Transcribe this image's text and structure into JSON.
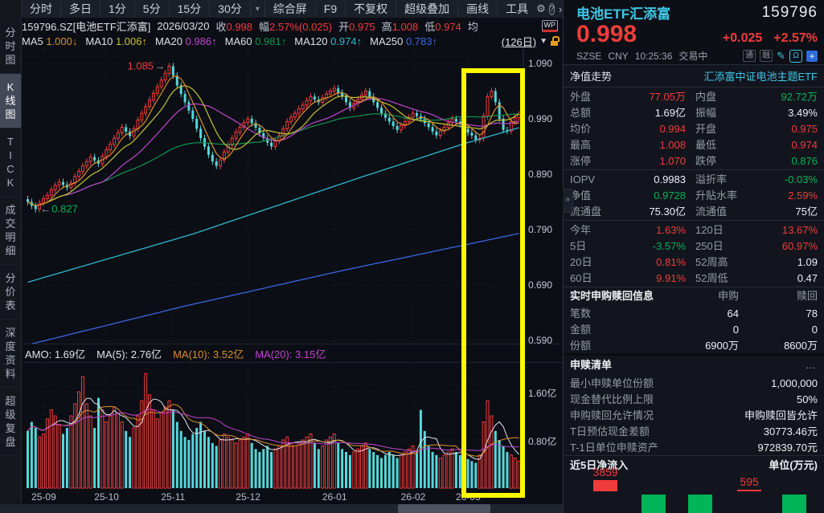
{
  "colors": {
    "chartBg": "#0b0e14",
    "panelBg": "#12151d",
    "topBg": "#1b1f27",
    "sideBg": "#14171e",
    "divider": "#262b35",
    "grid": "#252a34",
    "labelG": "#949ca8",
    "textW": "#e4e7ec",
    "red": "#f23c3c",
    "green": "#00b458",
    "candleCyan": "#55d7da",
    "accCyan": "#3ec7e6",
    "ma5": "#d9902d",
    "ma10": "#c9c331",
    "ma20": "#bf46cf",
    "ma60": "#129552",
    "ma120": "#2fb7cf",
    "ma250": "#3a67e6",
    "hlYellow": "#fdf900",
    "lockOr": "#e8a020",
    "volW": "#dfe3e8"
  },
  "icons": {
    "gear": "⚙",
    "help": "?",
    "chev_right": "›",
    "caret_small": "▾",
    "caret_down": "▼",
    "more": "…",
    "collapse": "»",
    "pencil": "✎",
    "bell": "Ω",
    "plus": "+"
  },
  "toolbar": {
    "tabs": [
      "分时",
      "多日",
      "1分",
      "5分",
      "15分",
      "30分"
    ],
    "menu": [
      "综合屏",
      "F9",
      "不复权",
      "超级叠加",
      "画线",
      "工具"
    ]
  },
  "info_bar": {
    "symbol": "159796.SZ[电池ETF汇添富]",
    "date": "2026/03/20",
    "fields": [
      {
        "label": "收",
        "value": "0.998",
        "c": "red"
      },
      {
        "label": "幅",
        "value": "2.57%(0.025)",
        "c": "red"
      },
      {
        "label": "开",
        "value": "0.975",
        "c": "red"
      },
      {
        "label": "高",
        "value": "1.008",
        "c": "red"
      },
      {
        "label": "低",
        "value": "0.974",
        "c": "red"
      },
      {
        "label": "均",
        "value": "",
        "c": "dim"
      }
    ],
    "wp_badge": "WP"
  },
  "ma_bar": {
    "items": [
      {
        "label": "MA5",
        "value": "1.000",
        "arrow": "↓",
        "key": "ma5"
      },
      {
        "label": "MA10",
        "value": "1.006",
        "arrow": "↑",
        "key": "ma10"
      },
      {
        "label": "MA20",
        "value": "0.986",
        "arrow": "↑",
        "key": "ma20"
      },
      {
        "label": "MA60",
        "value": "0.981",
        "arrow": "↑",
        "key": "ma60"
      },
      {
        "label": "MA120",
        "value": "0.974",
        "arrow": "↑",
        "key": "ma120"
      },
      {
        "label": "MA250",
        "value": "0.783",
        "arrow": "↑",
        "key": "ma250"
      }
    ],
    "period": "(126日)"
  },
  "sidebar": {
    "items": [
      {
        "label": "分时图",
        "selected": false
      },
      {
        "label": "K线图",
        "selected": true
      },
      {
        "label": "TICK",
        "selected": false
      },
      {
        "label": "成交明细",
        "selected": false
      },
      {
        "label": "分价表",
        "selected": false
      },
      {
        "label": "深度资料",
        "selected": false
      },
      {
        "label": "超级复盘",
        "selected": false
      }
    ]
  },
  "chart_data": {
    "type": "candlestick",
    "title": "159796.SZ 电池ETF汇添富 日K (126日)",
    "y_ticks": [
      1.09,
      0.99,
      0.89,
      0.79,
      0.69,
      0.59
    ],
    "x_labels": [
      {
        "label": "25-09",
        "day": 4
      },
      {
        "label": "25-10",
        "day": 20
      },
      {
        "label": "25-11",
        "day": 37
      },
      {
        "label": "25-12",
        "day": 56
      },
      {
        "label": "26-01",
        "day": 78
      },
      {
        "label": "26-02",
        "day": 98
      },
      {
        "label": "26-03",
        "day": 112
      }
    ],
    "close": [
      0.84,
      0.833,
      0.827,
      0.838,
      0.846,
      0.852,
      0.862,
      0.87,
      0.876,
      0.871,
      0.866,
      0.874,
      0.886,
      0.895,
      0.905,
      0.913,
      0.921,
      0.915,
      0.909,
      0.922,
      0.934,
      0.944,
      0.955,
      0.965,
      0.975,
      0.967,
      0.959,
      0.972,
      0.988,
      1.0,
      1.012,
      1.024,
      1.036,
      1.048,
      1.06,
      1.072,
      1.085,
      1.068,
      1.05,
      1.035,
      1.02,
      1.005,
      0.99,
      0.972,
      0.955,
      0.94,
      0.925,
      0.913,
      0.905,
      0.916,
      0.93,
      0.943,
      0.955,
      0.966,
      0.975,
      0.983,
      0.99,
      0.982,
      0.974,
      0.964,
      0.955,
      0.947,
      0.94,
      0.95,
      0.96,
      0.972,
      0.985,
      0.993,
      1.0,
      1.008,
      1.015,
      1.023,
      1.03,
      1.025,
      1.02,
      1.028,
      1.035,
      1.04,
      1.045,
      1.037,
      1.03,
      1.02,
      1.01,
      1.018,
      1.025,
      1.033,
      1.04,
      1.03,
      1.02,
      1.01,
      1.0,
      0.992,
      0.985,
      0.977,
      0.97,
      0.978,
      0.985,
      0.993,
      1.0,
      0.995,
      0.99,
      0.982,
      0.975,
      0.967,
      0.96,
      0.968,
      0.975,
      0.983,
      0.99,
      0.985,
      0.98,
      0.972,
      0.965,
      0.96,
      0.952,
      0.955,
      0.995,
      1.03,
      1.04,
      1.02,
      0.99,
      0.97,
      0.968,
      0.985,
      0.992,
      0.998
    ],
    "volume_yi": [
      0.95,
      1.1,
      1.0,
      0.85,
      0.9,
      1.15,
      1.3,
      1.2,
      1.05,
      0.9,
      1.0,
      1.2,
      1.4,
      1.6,
      1.85,
      1.4,
      1.2,
      1.0,
      1.5,
      1.3,
      1.1,
      1.2,
      1.35,
      1.25,
      1.1,
      0.95,
      0.85,
      1.0,
      1.2,
      1.45,
      1.9,
      1.55,
      1.3,
      1.15,
      1.25,
      1.35,
      1.45,
      1.3,
      1.1,
      0.95,
      0.85,
      0.8,
      0.9,
      1.0,
      1.1,
      0.95,
      0.85,
      0.75,
      0.7,
      0.8,
      0.9,
      0.85,
      0.8,
      0.75,
      0.8,
      0.85,
      0.9,
      0.75,
      0.65,
      0.6,
      0.65,
      0.7,
      0.6,
      0.65,
      0.7,
      0.8,
      0.85,
      0.75,
      0.7,
      0.75,
      0.8,
      0.85,
      0.9,
      0.75,
      0.65,
      0.7,
      0.8,
      0.85,
      0.9,
      0.75,
      0.65,
      0.6,
      0.55,
      0.6,
      0.65,
      0.7,
      0.75,
      0.65,
      0.6,
      0.55,
      0.5,
      0.55,
      0.6,
      0.55,
      0.5,
      0.55,
      0.6,
      0.65,
      0.7,
      0.6,
      1.3,
      0.95,
      0.7,
      0.6,
      0.55,
      0.5,
      0.55,
      0.6,
      0.65,
      0.6,
      0.55,
      0.5,
      0.48,
      0.45,
      0.42,
      0.55,
      1.1,
      1.45,
      1.2,
      0.95,
      0.8,
      0.7,
      0.6,
      0.55,
      0.5,
      0.45
    ],
    "vol_ticks": [
      {
        "label": "1.60亿",
        "value": 1.6
      },
      {
        "label": "0.80亿",
        "value": 0.8
      }
    ],
    "annotations": {
      "high": {
        "text": "1.085",
        "day": 36,
        "price": 1.085,
        "arrow": "→"
      },
      "low": {
        "text": "0.827",
        "day": 2,
        "price": 0.827,
        "arrow": "←"
      }
    },
    "amo_items": [
      {
        "label": "AMO:",
        "value": "1.69亿",
        "key": "volW"
      },
      {
        "label": "MA(5):",
        "value": "2.76亿",
        "key": "volW"
      },
      {
        "label": "MA(10):",
        "value": "3.52亿",
        "key": "ma5"
      },
      {
        "label": "MA(20):",
        "value": "3.15亿",
        "key": "ma20"
      }
    ],
    "ma120_waypoints": [
      [
        0,
        0.695
      ],
      [
        42,
        0.782
      ],
      [
        85,
        0.885
      ],
      [
        111,
        0.945
      ],
      [
        125,
        0.974
      ]
    ],
    "ma250_waypoints": [
      [
        0,
        0.582
      ],
      [
        40,
        0.652
      ],
      [
        80,
        0.716
      ],
      [
        125,
        0.783
      ]
    ],
    "highlight_box_days": [
      112,
      125
    ]
  },
  "panel": {
    "name": "电池ETF汇添富",
    "code": "159796",
    "price": "0.998",
    "change": "+0.025",
    "change_pct": "+2.57%",
    "exchange": "SZSE",
    "currency": "CNY",
    "time": "10:25:36",
    "status": "交易中",
    "badges": [
      "通",
      "融"
    ],
    "nav_title": "净值走势",
    "fund_name": "汇添富中证电池主题ETF",
    "quote_groups": [
      [
        [
          {
            "l": "外盘",
            "v": "77.05万",
            "c": "red"
          },
          {
            "l": "内盘",
            "v": "92.72万",
            "c": "green"
          }
        ],
        [
          {
            "l": "总额",
            "v": "1.69亿",
            "c": "white"
          },
          {
            "l": "振幅",
            "v": "3.49%",
            "c": "white"
          }
        ],
        [
          {
            "l": "均价",
            "v": "0.994",
            "c": "red"
          },
          {
            "l": "开盘",
            "v": "0.975",
            "c": "red"
          }
        ],
        [
          {
            "l": "最高",
            "v": "1.008",
            "c": "red"
          },
          {
            "l": "最低",
            "v": "0.974",
            "c": "red"
          }
        ],
        [
          {
            "l": "涨停",
            "v": "1.070",
            "c": "red"
          },
          {
            "l": "跌停",
            "v": "0.876",
            "c": "green"
          }
        ]
      ],
      [
        [
          {
            "l": "IOPV",
            "v": "0.9983",
            "c": "white"
          },
          {
            "l": "溢折率",
            "v": "-0.03%",
            "c": "green"
          }
        ],
        [
          {
            "l": "净值",
            "v": "0.9728",
            "c": "green"
          },
          {
            "l": "升贴水率",
            "v": "2.59%",
            "c": "red"
          }
        ],
        [
          {
            "l": "流通盘",
            "v": "75.30亿",
            "c": "white"
          },
          {
            "l": "流通值",
            "v": "75亿",
            "c": "white"
          }
        ]
      ],
      [
        [
          {
            "l": "今年",
            "v": "1.63%",
            "c": "red"
          },
          {
            "l": "120日",
            "v": "13.67%",
            "c": "red"
          }
        ],
        [
          {
            "l": "5日",
            "v": "-3.57%",
            "c": "green"
          },
          {
            "l": "250日",
            "v": "60.97%",
            "c": "red"
          }
        ],
        [
          {
            "l": "20日",
            "v": "0.81%",
            "c": "red"
          },
          {
            "l": "52周高",
            "v": "1.09",
            "c": "white"
          }
        ],
        [
          {
            "l": "60日",
            "v": "9.91%",
            "c": "red"
          },
          {
            "l": "52周低",
            "v": "0.47",
            "c": "white"
          }
        ]
      ]
    ],
    "subscribe_table": {
      "title": "实时申购赎回信息",
      "col1": "申购",
      "col2": "赎回",
      "rows": [
        {
          "l": "笔数",
          "v1": "64",
          "v2": "78"
        },
        {
          "l": "金额",
          "v1": "0",
          "v2": "0"
        },
        {
          "l": "份额",
          "v1": "6900万",
          "v2": "8600万"
        }
      ]
    },
    "redeem_list": {
      "title": "申赎清单",
      "rows": [
        {
          "l": "最小申赎单位份额",
          "v": "1,000,000"
        },
        {
          "l": "现金替代比例上限",
          "v": "50%"
        },
        {
          "l": "申购赎回允许情况",
          "v": "申购赎回皆允许"
        },
        {
          "l": "T日预估现金差额",
          "v": "30773.46元"
        },
        {
          "l": "T-1日单位申赎资产",
          "v": "972839.70元"
        }
      ]
    },
    "net_inflow": {
      "title": "近5日净流入",
      "unit": "单位(万元)",
      "bars": [
        {
          "label": "3859",
          "dir": "up",
          "h": 14
        },
        {
          "label": "",
          "dir": "down",
          "h": 24
        },
        {
          "label": "",
          "dir": "down",
          "h": 24
        },
        {
          "label": "595",
          "dir": "up",
          "h": 2
        },
        {
          "label": "",
          "dir": "down",
          "h": 24
        }
      ]
    }
  }
}
